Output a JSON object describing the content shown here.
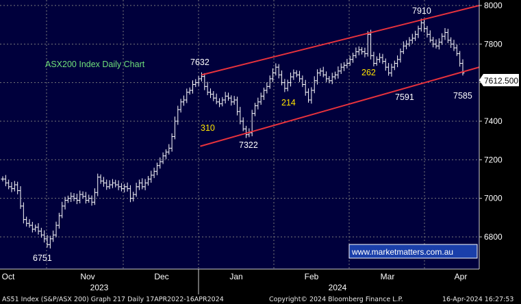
{
  "chart_data": {
    "type": "ohlc",
    "title": "ASX200 Index Daily Chart",
    "ylim": [
      6630,
      8040
    ],
    "y_ticks": [
      6800,
      7000,
      7200,
      7400,
      7600,
      7800,
      8000
    ],
    "x_month_labels": [
      "Oct",
      "Nov",
      "Dec",
      "Jan",
      "Feb",
      "Mar",
      "Apr"
    ],
    "x_year_labels": [
      "2023",
      "2024"
    ],
    "last_price": "7612.500",
    "annotations": [
      {
        "text": "6751",
        "value": 6751,
        "color": "#ffffff"
      },
      {
        "text": "7632",
        "value": 7632,
        "color": "#ffffff"
      },
      {
        "text": "7322",
        "value": 7322,
        "color": "#ffffff"
      },
      {
        "text": "7910",
        "value": 7910,
        "color": "#ffffff"
      },
      {
        "text": "7591",
        "value": 7591,
        "color": "#ffffff"
      },
      {
        "text": "7585",
        "value": 7585,
        "color": "#ffffff"
      },
      {
        "text": "310",
        "value": 310,
        "color": "#ffe400"
      },
      {
        "text": "214",
        "value": 214,
        "color": "#ffe400"
      },
      {
        "text": "262",
        "value": 262,
        "color": "#ffe400"
      }
    ],
    "closes": [
      7100,
      7080,
      7060,
      7050,
      7070,
      7040,
      6960,
      6890,
      6870,
      6860,
      6840,
      6850,
      6830,
      6810,
      6790,
      6760,
      6790,
      6810,
      6860,
      6910,
      6960,
      6990,
      7000,
      7010,
      7000,
      6990,
      7020,
      7010,
      6990,
      7000,
      6980,
      7030,
      7110,
      7090,
      7080,
      7060,
      7070,
      7080,
      7070,
      7060,
      7050,
      7060,
      7050,
      7000,
      7020,
      7060,
      7080,
      7060,
      7080,
      7100,
      7120,
      7140,
      7170,
      7190,
      7220,
      7240,
      7260,
      7320,
      7400,
      7460,
      7500,
      7510,
      7550,
      7560,
      7590,
      7600,
      7620,
      7632,
      7580,
      7550,
      7540,
      7520,
      7500,
      7490,
      7510,
      7530,
      7520,
      7500,
      7510,
      7450,
      7400,
      7360,
      7330,
      7340,
      7440,
      7480,
      7500,
      7530,
      7560,
      7580,
      7620,
      7650,
      7680,
      7640,
      7600,
      7570,
      7600,
      7630,
      7650,
      7640,
      7620,
      7590,
      7550,
      7510,
      7560,
      7610,
      7650,
      7660,
      7640,
      7620,
      7610,
      7630,
      7640,
      7660,
      7680,
      7690,
      7700,
      7720,
      7740,
      7760,
      7770,
      7760,
      7750,
      7850,
      7740,
      7700,
      7720,
      7730,
      7710,
      7680,
      7650,
      7680,
      7700,
      7720,
      7760,
      7790,
      7800,
      7820,
      7830,
      7850,
      7880,
      7910,
      7880,
      7850,
      7820,
      7800,
      7790,
      7810,
      7840,
      7860,
      7820,
      7800,
      7780,
      7750,
      7700,
      7650
    ],
    "color": "#ffffff",
    "channel_color": "#e8323c"
  },
  "watermark": "www.marketmatters.com.au",
  "footer": {
    "left": "AS51 Index (S&P/ASX 200) Graph 217  Daily 17APR2022-16APR2024",
    "center": "Copyright© 2024 Bloomberg Finance L.P.",
    "right": "16-Apr-2024 16:27:53"
  },
  "colors": {
    "background": "#000000",
    "plot_background": "#00003c",
    "grid": "#7a7a7a",
    "price_box_bg": "#ffffff",
    "price_box_text": "#000000",
    "watermark_bg": "#1a3faa"
  }
}
